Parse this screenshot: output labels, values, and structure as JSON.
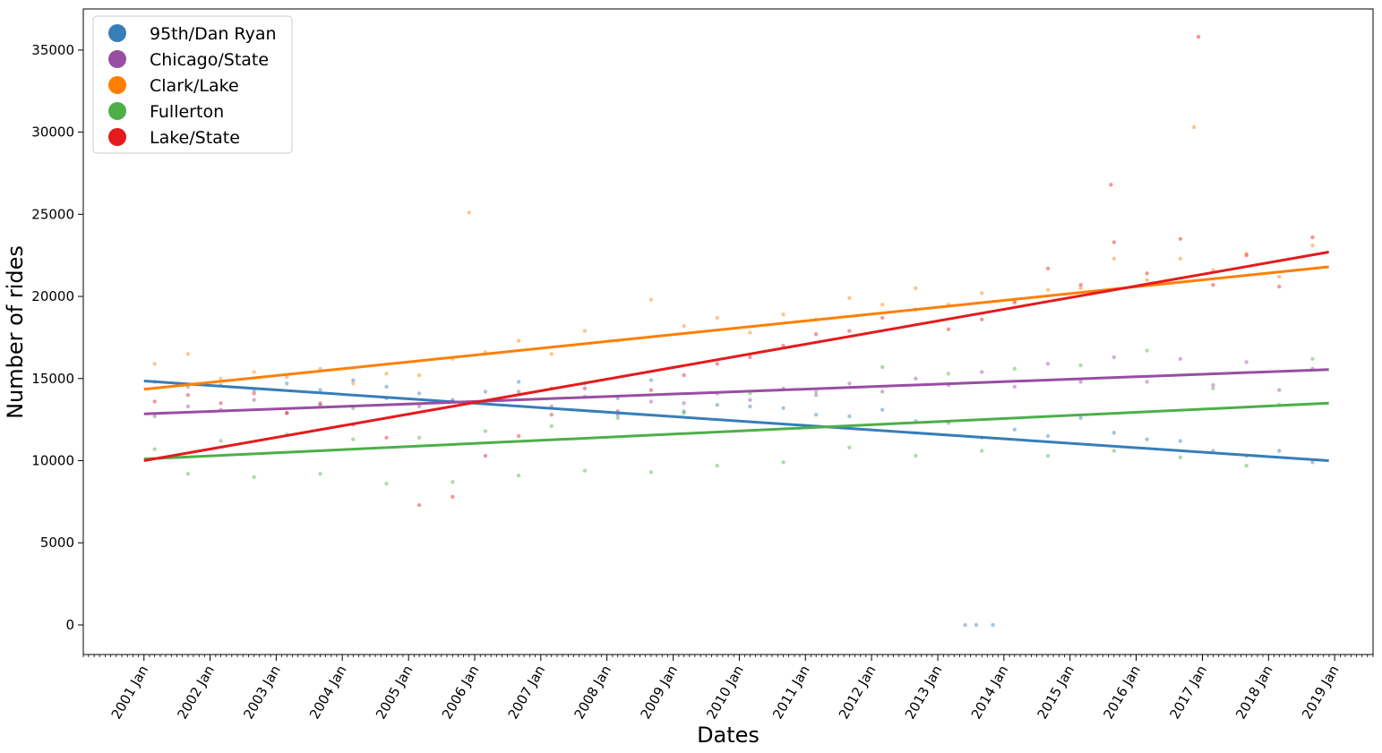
{
  "chart_data": {
    "type": "scatter",
    "title": "",
    "xlabel": "Dates",
    "ylabel": "Number of rides",
    "x_ticks": [
      "2001 Jan",
      "2002 Jan",
      "2003 Jan",
      "2004 Jan",
      "2005 Jan",
      "2006 Jan",
      "2007 Jan",
      "2008 Jan",
      "2009 Jan",
      "2010 Jan",
      "2011 Jan",
      "2012 Jan",
      "2013 Jan",
      "2014 Jan",
      "2015 Jan",
      "2016 Jan",
      "2017 Jan",
      "2018 Jan",
      "2019 Jan"
    ],
    "y_ticks": [
      0,
      5000,
      10000,
      15000,
      20000,
      25000,
      30000,
      35000
    ],
    "xlim": [
      "2000-02-01",
      "2019-08-01"
    ],
    "ylim": [
      -1800,
      37500
    ],
    "grid": false,
    "legend_position": "top-left",
    "series": [
      {
        "name": "95th/Dan Ryan",
        "color": "#377eb8",
        "trend": {
          "start": [
            "2001-01-01",
            14850
          ],
          "end": [
            "2018-11-30",
            10000
          ]
        },
        "points": [
          [
            "2001-03-01",
            14800
          ],
          [
            "2001-09-01",
            14500
          ],
          [
            "2002-03-01",
            14600
          ],
          [
            "2002-09-01",
            14300
          ],
          [
            "2003-03-01",
            14700
          ],
          [
            "2003-09-01",
            14300
          ],
          [
            "2004-03-01",
            14900
          ],
          [
            "2004-09-01",
            14500
          ],
          [
            "2005-03-01",
            14100
          ],
          [
            "2005-09-01",
            13600
          ],
          [
            "2006-03-01",
            14200
          ],
          [
            "2006-09-01",
            14800
          ],
          [
            "2007-03-01",
            14400
          ],
          [
            "2007-09-01",
            14700
          ],
          [
            "2008-03-01",
            13800
          ],
          [
            "2008-09-01",
            14900
          ],
          [
            "2009-03-01",
            13000
          ],
          [
            "2009-09-01",
            13400
          ],
          [
            "2010-03-01",
            13300
          ],
          [
            "2010-09-01",
            13200
          ],
          [
            "2011-03-01",
            12800
          ],
          [
            "2011-09-01",
            12700
          ],
          [
            "2012-03-01",
            13100
          ],
          [
            "2012-09-01",
            12400
          ],
          [
            "2013-03-01",
            12300
          ],
          [
            "2013-09-01",
            11400
          ],
          [
            "2014-03-01",
            11900
          ],
          [
            "2014-09-01",
            11500
          ],
          [
            "2015-03-01",
            12600
          ],
          [
            "2015-09-01",
            11700
          ],
          [
            "2016-03-01",
            11300
          ],
          [
            "2016-09-01",
            11200
          ],
          [
            "2017-03-01",
            10600
          ],
          [
            "2017-09-01",
            10300
          ],
          [
            "2018-03-01",
            10600
          ],
          [
            "2018-09-01",
            9900
          ],
          [
            "2013-06-01",
            0
          ],
          [
            "2013-08-01",
            0
          ],
          [
            "2013-11-01",
            0
          ]
        ]
      },
      {
        "name": "Chicago/State",
        "color": "#984ea3",
        "trend": {
          "start": [
            "2001-01-01",
            12850
          ],
          "end": [
            "2018-11-30",
            15550
          ]
        },
        "points": [
          [
            "2001-03-01",
            12700
          ],
          [
            "2001-09-01",
            13300
          ],
          [
            "2002-03-01",
            13100
          ],
          [
            "2002-09-01",
            13700
          ],
          [
            "2003-03-01",
            12900
          ],
          [
            "2003-09-01",
            13500
          ],
          [
            "2004-03-01",
            13200
          ],
          [
            "2004-09-01",
            13800
          ],
          [
            "2005-03-01",
            13300
          ],
          [
            "2005-09-01",
            13700
          ],
          [
            "2006-03-01",
            13600
          ],
          [
            "2006-09-01",
            14200
          ],
          [
            "2007-03-01",
            13300
          ],
          [
            "2007-09-01",
            13900
          ],
          [
            "2008-03-01",
            12800
          ],
          [
            "2008-09-01",
            13600
          ],
          [
            "2009-03-01",
            13500
          ],
          [
            "2009-09-01",
            14100
          ],
          [
            "2010-03-01",
            13700
          ],
          [
            "2010-09-01",
            14400
          ],
          [
            "2011-03-01",
            14000
          ],
          [
            "2011-09-01",
            14700
          ],
          [
            "2012-03-01",
            14200
          ],
          [
            "2012-09-01",
            15000
          ],
          [
            "2013-03-01",
            14600
          ],
          [
            "2013-09-01",
            15400
          ],
          [
            "2014-03-01",
            14500
          ],
          [
            "2014-09-01",
            15900
          ],
          [
            "2015-03-01",
            14800
          ],
          [
            "2015-09-01",
            16300
          ],
          [
            "2016-03-01",
            14800
          ],
          [
            "2016-09-01",
            16200
          ],
          [
            "2017-03-01",
            14600
          ],
          [
            "2017-09-01",
            16000
          ],
          [
            "2018-03-01",
            14300
          ],
          [
            "2018-09-01",
            15600
          ]
        ]
      },
      {
        "name": "Clark/Lake",
        "color": "#ff7f00",
        "trend": {
          "start": [
            "2001-01-01",
            14350
          ],
          "end": [
            "2018-11-30",
            21800
          ]
        },
        "points": [
          [
            "2001-03-01",
            15900
          ],
          [
            "2001-09-01",
            16500
          ],
          [
            "2002-03-01",
            15000
          ],
          [
            "2002-09-01",
            15400
          ],
          [
            "2003-03-01",
            15100
          ],
          [
            "2003-09-01",
            15600
          ],
          [
            "2004-03-01",
            14700
          ],
          [
            "2004-09-01",
            15300
          ],
          [
            "2005-03-01",
            15200
          ],
          [
            "2005-09-01",
            16200
          ],
          [
            "2006-03-01",
            16600
          ],
          [
            "2006-09-01",
            17300
          ],
          [
            "2007-03-01",
            16500
          ],
          [
            "2007-09-01",
            17900
          ],
          [
            "2008-03-01",
            17300
          ],
          [
            "2008-09-01",
            19800
          ],
          [
            "2009-03-01",
            18200
          ],
          [
            "2009-09-01",
            18700
          ],
          [
            "2010-03-01",
            17800
          ],
          [
            "2010-09-01",
            18900
          ],
          [
            "2011-03-01",
            18600
          ],
          [
            "2011-09-01",
            19900
          ],
          [
            "2012-03-01",
            19500
          ],
          [
            "2012-09-01",
            20500
          ],
          [
            "2013-03-01",
            19500
          ],
          [
            "2013-09-01",
            20200
          ],
          [
            "2014-03-01",
            19600
          ],
          [
            "2014-09-01",
            20400
          ],
          [
            "2015-03-01",
            20500
          ],
          [
            "2015-09-01",
            22300
          ],
          [
            "2016-03-01",
            21000
          ],
          [
            "2016-09-01",
            22300
          ],
          [
            "2017-03-01",
            21600
          ],
          [
            "2017-09-01",
            22600
          ],
          [
            "2018-03-01",
            21200
          ],
          [
            "2018-09-01",
            23100
          ],
          [
            "2005-12-01",
            25100
          ],
          [
            "2016-11-15",
            30300
          ]
        ]
      },
      {
        "name": "Fullerton",
        "color": "#4daf4a",
        "trend": {
          "start": [
            "2001-01-01",
            10100
          ],
          "end": [
            "2018-11-30",
            13500
          ]
        },
        "points": [
          [
            "2001-03-01",
            10700
          ],
          [
            "2001-09-01",
            9200
          ],
          [
            "2002-03-01",
            11200
          ],
          [
            "2002-09-01",
            9000
          ],
          [
            "2003-03-01",
            11600
          ],
          [
            "2003-09-01",
            9200
          ],
          [
            "2004-03-01",
            11300
          ],
          [
            "2004-09-01",
            8600
          ],
          [
            "2005-03-01",
            11400
          ],
          [
            "2005-09-01",
            8700
          ],
          [
            "2006-03-01",
            11800
          ],
          [
            "2006-09-01",
            9100
          ],
          [
            "2007-03-01",
            12100
          ],
          [
            "2007-09-01",
            9400
          ],
          [
            "2008-03-01",
            12600
          ],
          [
            "2008-09-01",
            9300
          ],
          [
            "2009-03-01",
            12900
          ],
          [
            "2009-09-01",
            9700
          ],
          [
            "2010-03-01",
            14100
          ],
          [
            "2010-09-01",
            9900
          ],
          [
            "2011-03-01",
            14200
          ],
          [
            "2011-09-01",
            10800
          ],
          [
            "2012-03-01",
            15700
          ],
          [
            "2012-09-01",
            10300
          ],
          [
            "2013-03-01",
            15300
          ],
          [
            "2013-09-01",
            10600
          ],
          [
            "2014-03-01",
            15600
          ],
          [
            "2014-09-01",
            10300
          ],
          [
            "2015-03-01",
            15800
          ],
          [
            "2015-09-01",
            10600
          ],
          [
            "2016-03-01",
            16700
          ],
          [
            "2016-09-01",
            10200
          ],
          [
            "2017-03-01",
            14400
          ],
          [
            "2017-09-01",
            9700
          ],
          [
            "2018-03-01",
            13400
          ],
          [
            "2018-09-01",
            16200
          ]
        ]
      },
      {
        "name": "Lake/State",
        "color": "#e41a1c",
        "trend": {
          "start": [
            "2001-01-01",
            10000
          ],
          "end": [
            "2018-11-30",
            22700
          ]
        },
        "points": [
          [
            "2001-03-01",
            13600
          ],
          [
            "2001-09-01",
            14000
          ],
          [
            "2002-03-01",
            13500
          ],
          [
            "2002-09-01",
            14100
          ],
          [
            "2003-03-01",
            12900
          ],
          [
            "2003-09-01",
            13400
          ],
          [
            "2004-03-01",
            12200
          ],
          [
            "2004-09-01",
            11400
          ],
          [
            "2005-03-01",
            7300
          ],
          [
            "2005-09-01",
            7800
          ],
          [
            "2006-03-01",
            10300
          ],
          [
            "2006-09-01",
            11500
          ],
          [
            "2007-03-01",
            12800
          ],
          [
            "2007-09-01",
            14400
          ],
          [
            "2008-03-01",
            13000
          ],
          [
            "2008-09-01",
            14300
          ],
          [
            "2009-03-01",
            15200
          ],
          [
            "2009-09-01",
            15900
          ],
          [
            "2010-03-01",
            16300
          ],
          [
            "2010-09-01",
            17000
          ],
          [
            "2011-03-01",
            17700
          ],
          [
            "2011-09-01",
            17900
          ],
          [
            "2012-03-01",
            18700
          ],
          [
            "2012-09-01",
            19200
          ],
          [
            "2013-03-01",
            18000
          ],
          [
            "2013-09-01",
            18600
          ],
          [
            "2014-03-01",
            19700
          ],
          [
            "2014-09-01",
            21700
          ],
          [
            "2015-03-01",
            20700
          ],
          [
            "2015-09-01",
            23300
          ],
          [
            "2016-03-01",
            21400
          ],
          [
            "2016-09-01",
            23500
          ],
          [
            "2017-03-01",
            20700
          ],
          [
            "2017-09-01",
            22500
          ],
          [
            "2018-03-01",
            20600
          ],
          [
            "2018-09-01",
            23600
          ],
          [
            "2015-08-15",
            26800
          ],
          [
            "2016-12-10",
            35800
          ]
        ]
      }
    ]
  }
}
